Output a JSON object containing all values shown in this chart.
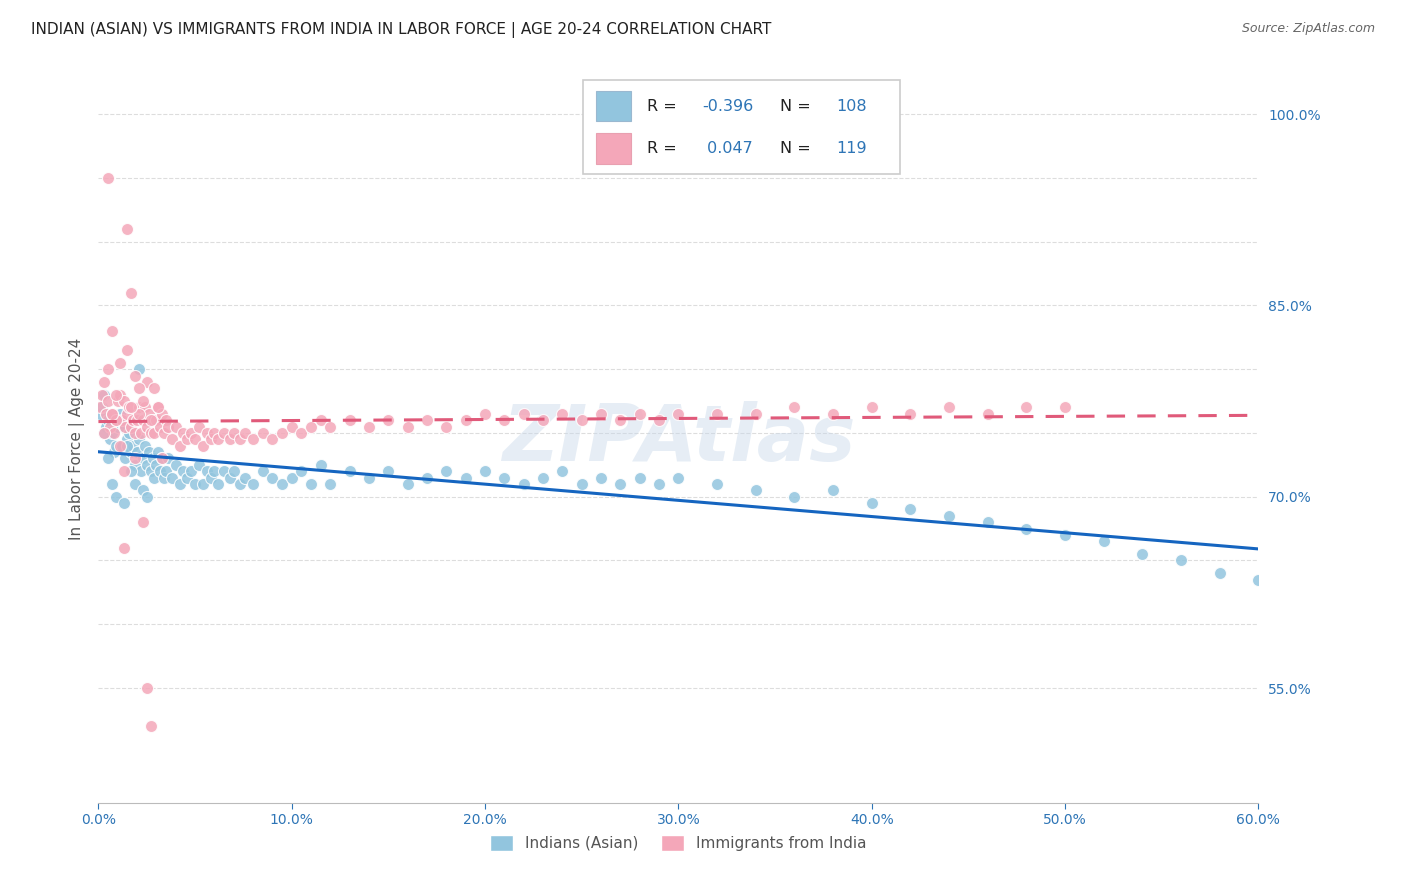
{
  "title": "INDIAN (ASIAN) VS IMMIGRANTS FROM INDIA IN LABOR FORCE | AGE 20-24 CORRELATION CHART",
  "source": "Source: ZipAtlas.com",
  "ylabel": "In Labor Force | Age 20-24",
  "watermark": "ZIPAtlas",
  "legend_blue_label": "Indians (Asian)",
  "legend_pink_label": "Immigrants from India",
  "r_blue_str": "-0.396",
  "r_pink_str": "0.047",
  "n_blue_str": "108",
  "n_pink_str": "119",
  "blue_color": "#92c5de",
  "pink_color": "#f4a7b9",
  "line_blue_color": "#1565c0",
  "line_pink_color": "#e05a7a",
  "title_color": "#222222",
  "axis_color": "#555555",
  "grid_color": "#dddddd",
  "tick_color": "#2e75b6",
  "source_color": "#666666",
  "xmin": 0.0,
  "xmax": 0.6,
  "ymin": 46.0,
  "ymax": 103.0,
  "xtick_vals": [
    0.0,
    0.1,
    0.2,
    0.3,
    0.4,
    0.5,
    0.6
  ],
  "xtick_labels": [
    "0.0%",
    "10.0%",
    "20.0%",
    "30.0%",
    "40.0%",
    "50.0%",
    "60.0%"
  ],
  "ytick_vals": [
    55.0,
    60.0,
    65.0,
    70.0,
    75.0,
    80.0,
    85.0,
    90.0,
    95.0,
    100.0
  ],
  "ytick_labels": [
    "55.0%",
    "",
    "",
    "70.0%",
    "",
    "",
    "85.0%",
    "",
    "",
    "100.0%"
  ],
  "blue_x": [
    0.001,
    0.002,
    0.003,
    0.004,
    0.005,
    0.006,
    0.007,
    0.008,
    0.009,
    0.01,
    0.011,
    0.012,
    0.013,
    0.014,
    0.015,
    0.016,
    0.017,
    0.018,
    0.019,
    0.02,
    0.021,
    0.022,
    0.023,
    0.024,
    0.025,
    0.026,
    0.027,
    0.028,
    0.029,
    0.03,
    0.031,
    0.032,
    0.033,
    0.034,
    0.035,
    0.036,
    0.038,
    0.04,
    0.042,
    0.044,
    0.046,
    0.048,
    0.05,
    0.052,
    0.054,
    0.056,
    0.058,
    0.06,
    0.062,
    0.065,
    0.068,
    0.07,
    0.073,
    0.076,
    0.08,
    0.085,
    0.09,
    0.095,
    0.1,
    0.105,
    0.11,
    0.115,
    0.12,
    0.13,
    0.14,
    0.15,
    0.16,
    0.17,
    0.18,
    0.19,
    0.2,
    0.21,
    0.22,
    0.23,
    0.24,
    0.25,
    0.26,
    0.27,
    0.28,
    0.29,
    0.3,
    0.32,
    0.34,
    0.36,
    0.38,
    0.4,
    0.42,
    0.44,
    0.46,
    0.48,
    0.5,
    0.52,
    0.54,
    0.56,
    0.58,
    0.6,
    0.003,
    0.005,
    0.007,
    0.009,
    0.011,
    0.013,
    0.015,
    0.017,
    0.019,
    0.021,
    0.023,
    0.025
  ],
  "blue_y": [
    76.5,
    77.0,
    78.0,
    75.5,
    76.0,
    74.5,
    75.0,
    73.5,
    74.0,
    75.5,
    76.0,
    74.0,
    75.5,
    73.0,
    74.5,
    75.0,
    73.5,
    74.0,
    72.5,
    73.5,
    74.5,
    72.0,
    73.0,
    74.0,
    72.5,
    73.5,
    72.0,
    73.0,
    71.5,
    72.5,
    73.5,
    72.0,
    73.0,
    71.5,
    72.0,
    73.0,
    71.5,
    72.5,
    71.0,
    72.0,
    71.5,
    72.0,
    71.0,
    72.5,
    71.0,
    72.0,
    71.5,
    72.0,
    71.0,
    72.0,
    71.5,
    72.0,
    71.0,
    71.5,
    71.0,
    72.0,
    71.5,
    71.0,
    71.5,
    72.0,
    71.0,
    72.5,
    71.0,
    72.0,
    71.5,
    72.0,
    71.0,
    71.5,
    72.0,
    71.5,
    72.0,
    71.5,
    71.0,
    71.5,
    72.0,
    71.0,
    71.5,
    71.0,
    71.5,
    71.0,
    71.5,
    71.0,
    70.5,
    70.0,
    70.5,
    69.5,
    69.0,
    68.5,
    68.0,
    67.5,
    67.0,
    66.5,
    65.5,
    65.0,
    64.0,
    63.5,
    75.0,
    73.0,
    71.0,
    70.0,
    76.5,
    69.5,
    74.0,
    72.0,
    71.0,
    80.0,
    70.5,
    70.0
  ],
  "pink_x": [
    0.001,
    0.002,
    0.003,
    0.004,
    0.005,
    0.006,
    0.007,
    0.008,
    0.009,
    0.01,
    0.011,
    0.012,
    0.013,
    0.014,
    0.015,
    0.016,
    0.017,
    0.018,
    0.019,
    0.02,
    0.021,
    0.022,
    0.023,
    0.024,
    0.025,
    0.026,
    0.027,
    0.028,
    0.029,
    0.03,
    0.031,
    0.032,
    0.033,
    0.034,
    0.035,
    0.036,
    0.038,
    0.04,
    0.042,
    0.044,
    0.046,
    0.048,
    0.05,
    0.052,
    0.054,
    0.056,
    0.058,
    0.06,
    0.062,
    0.065,
    0.068,
    0.07,
    0.073,
    0.076,
    0.08,
    0.085,
    0.09,
    0.095,
    0.1,
    0.105,
    0.11,
    0.115,
    0.12,
    0.13,
    0.14,
    0.15,
    0.16,
    0.17,
    0.18,
    0.19,
    0.2,
    0.21,
    0.22,
    0.23,
    0.24,
    0.25,
    0.26,
    0.27,
    0.28,
    0.29,
    0.3,
    0.32,
    0.34,
    0.36,
    0.38,
    0.4,
    0.42,
    0.44,
    0.46,
    0.48,
    0.5,
    0.003,
    0.005,
    0.007,
    0.009,
    0.011,
    0.013,
    0.015,
    0.017,
    0.019,
    0.021,
    0.023,
    0.025,
    0.027,
    0.029,
    0.031,
    0.033,
    0.005,
    0.007,
    0.009,
    0.011,
    0.013,
    0.015,
    0.017,
    0.019,
    0.021,
    0.023,
    0.025,
    0.027
  ],
  "pink_y": [
    77.0,
    78.0,
    79.0,
    76.5,
    77.5,
    75.5,
    76.5,
    75.0,
    76.0,
    77.5,
    78.0,
    76.0,
    77.5,
    75.5,
    76.5,
    77.0,
    75.5,
    76.0,
    75.0,
    76.0,
    77.0,
    75.0,
    76.0,
    77.0,
    75.5,
    76.5,
    75.0,
    76.0,
    75.0,
    76.0,
    77.0,
    75.5,
    76.5,
    75.0,
    76.0,
    75.5,
    74.5,
    75.5,
    74.0,
    75.0,
    74.5,
    75.0,
    74.5,
    75.5,
    74.0,
    75.0,
    74.5,
    75.0,
    74.5,
    75.0,
    74.5,
    75.0,
    74.5,
    75.0,
    74.5,
    75.0,
    74.5,
    75.0,
    75.5,
    75.0,
    75.5,
    76.0,
    75.5,
    76.0,
    75.5,
    76.0,
    75.5,
    76.0,
    75.5,
    76.0,
    76.5,
    76.0,
    76.5,
    76.0,
    76.5,
    76.0,
    76.5,
    76.0,
    76.5,
    76.0,
    76.5,
    76.5,
    76.5,
    77.0,
    76.5,
    77.0,
    76.5,
    77.0,
    76.5,
    77.0,
    77.0,
    75.0,
    80.0,
    83.0,
    76.0,
    74.0,
    72.0,
    91.0,
    86.0,
    73.0,
    76.5,
    77.5,
    79.0,
    76.0,
    78.5,
    77.0,
    73.0,
    95.0,
    76.5,
    78.0,
    80.5,
    66.0,
    81.5,
    77.0,
    79.5,
    78.5,
    68.0,
    55.0,
    52.0
  ]
}
